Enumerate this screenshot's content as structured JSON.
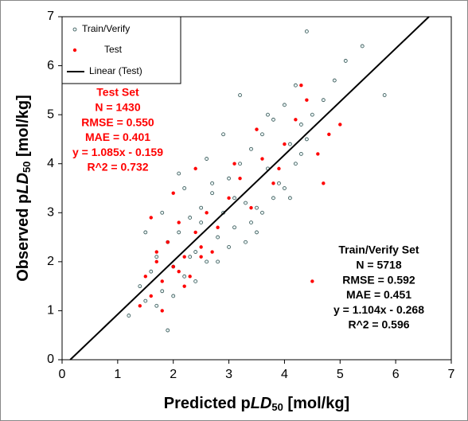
{
  "chart_data": {
    "type": "scatter",
    "xlabel": {
      "prefix": "Predicted p",
      "italic": "LD",
      "sub": "50",
      "suffix": " [mol/kg]"
    },
    "ylabel": {
      "prefix": "Observed p",
      "italic": "LD",
      "sub": "50",
      "suffix": " [mol/kg]"
    },
    "xlim": [
      0,
      7
    ],
    "ylim": [
      0,
      7
    ],
    "xticks": [
      0,
      1,
      2,
      3,
      4,
      5,
      6,
      7
    ],
    "yticks": [
      0,
      1,
      2,
      3,
      4,
      5,
      6,
      7
    ],
    "series": [
      {
        "name": "Train/Verify",
        "color": "#2f4f4f",
        "fillcolor": "#e8f4f4",
        "x": [
          1.2,
          1.4,
          1.5,
          1.6,
          1.7,
          1.8,
          1.9,
          2.0,
          2.1,
          2.2,
          2.3,
          2.4,
          2.5,
          2.6,
          2.7,
          2.8,
          2.9,
          3.0,
          3.1,
          3.2,
          3.3,
          3.4,
          3.5,
          3.6,
          3.7,
          3.8,
          3.9,
          4.0,
          4.1,
          4.2,
          4.3,
          4.4,
          4.5,
          4.7,
          4.9,
          5.1,
          5.4,
          5.8,
          1.5,
          1.8,
          2.0,
          2.2,
          2.4,
          2.6,
          2.8,
          3.0,
          3.2,
          3.4,
          3.6,
          3.8,
          4.0,
          4.2,
          4.4,
          1.7,
          2.1,
          2.5,
          2.9,
          3.3,
          3.7,
          4.1,
          2.3,
          2.7,
          3.1,
          3.5,
          4.3,
          1.9
        ],
        "values": [
          0.9,
          1.5,
          1.2,
          1.8,
          2.1,
          1.4,
          2.4,
          1.9,
          2.6,
          1.7,
          2.9,
          2.2,
          3.1,
          2.0,
          3.4,
          2.5,
          3.0,
          3.7,
          2.7,
          4.0,
          3.2,
          4.3,
          3.1,
          4.6,
          3.9,
          4.9,
          3.6,
          5.2,
          4.4,
          5.6,
          4.8,
          6.7,
          5.0,
          5.3,
          5.7,
          6.1,
          6.4,
          5.4,
          2.6,
          3.0,
          1.3,
          3.5,
          1.6,
          4.1,
          2.0,
          2.3,
          5.4,
          2.8,
          3.0,
          3.3,
          3.5,
          4.0,
          4.5,
          1.1,
          3.8,
          2.8,
          4.6,
          2.4,
          5.0,
          3.3,
          2.1,
          3.6,
          3.3,
          2.6,
          4.2,
          0.6
        ]
      },
      {
        "name": "Test",
        "color": "#ff0000",
        "x": [
          1.4,
          1.5,
          1.6,
          1.7,
          1.8,
          1.9,
          2.0,
          2.1,
          2.2,
          2.3,
          2.4,
          2.5,
          2.6,
          2.8,
          3.0,
          3.2,
          3.4,
          3.6,
          3.8,
          4.0,
          4.2,
          4.4,
          4.6,
          4.8,
          5.0,
          1.6,
          1.8,
          2.0,
          2.2,
          2.4,
          2.7,
          3.1,
          3.5,
          3.9,
          4.3,
          4.7,
          1.7,
          2.1,
          2.5,
          4.5
        ],
        "values": [
          1.1,
          1.7,
          1.3,
          2.0,
          1.6,
          2.4,
          1.9,
          2.8,
          2.1,
          1.7,
          2.6,
          2.3,
          3.0,
          2.7,
          3.3,
          3.7,
          3.1,
          4.1,
          3.6,
          4.4,
          4.9,
          5.3,
          4.2,
          4.6,
          4.8,
          2.9,
          1.0,
          3.4,
          1.5,
          3.9,
          2.2,
          4.0,
          4.7,
          3.9,
          5.6,
          3.6,
          2.2,
          1.8,
          2.1,
          1.6
        ]
      }
    ],
    "fit": {
      "name": "Linear (Test)",
      "color": "#000000",
      "slope": 1.085,
      "intercept": -0.159
    },
    "annotations": [
      {
        "color": "#ff0000",
        "lines": [
          "Test Set",
          "N = 1430",
          "RMSE = 0.550",
          "MAE = 0.401",
          "y = 1.085x - 0.159",
          "R^2 = 0.732"
        ]
      },
      {
        "color": "#000000",
        "lines": [
          "Train/Verify Set",
          "N = 5718",
          "RMSE = 0.592",
          "MAE = 0.451",
          "y = 1.104x - 0.268",
          "R^2 = 0.596"
        ]
      }
    ]
  }
}
